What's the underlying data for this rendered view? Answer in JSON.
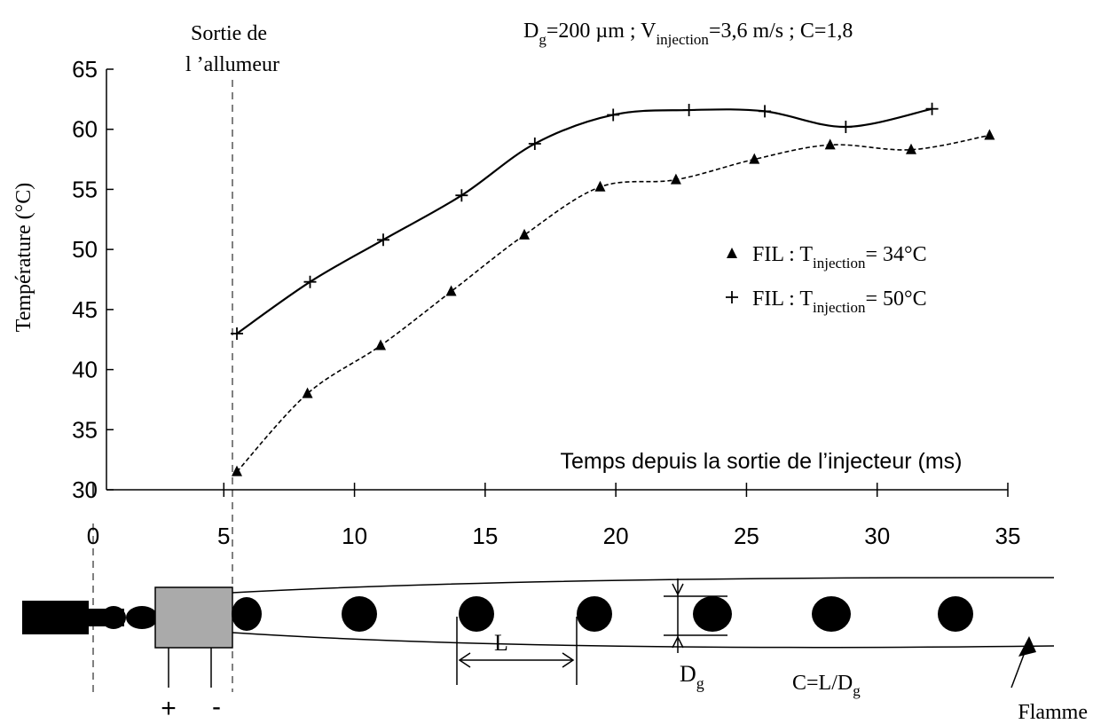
{
  "chart_data": {
    "type": "scatter-line",
    "title": [
      "D",
      "g",
      "=200 µm ; V",
      "injection",
      "=3,6 m/s ; C=1,8"
    ],
    "annotation": [
      "Sortie de",
      "l ’allumeur"
    ],
    "x_label": "Temps depuis la sortie de l’injecteur (ms)",
    "y_label": "Température (°C)",
    "xlim": [
      0,
      35
    ],
    "xticks": [
      0,
      5,
      10,
      15,
      20,
      25,
      30,
      35
    ],
    "ylim": [
      30,
      65
    ],
    "yticks": [
      30,
      35,
      40,
      45,
      50,
      55,
      60,
      65
    ],
    "series": [
      {
        "name": [
          "FIL : T",
          "injection",
          "= 34°C"
        ],
        "color": "#000000",
        "marker": "triangle",
        "line_style": "dashed",
        "x": [
          5.5,
          8.2,
          11,
          13.7,
          16.5,
          19.4,
          22.3,
          25.3,
          28.2,
          31.3,
          34.3
        ],
        "values": [
          31.5,
          38,
          42,
          46.5,
          51.2,
          55.2,
          55.8,
          57.5,
          58.7,
          58.3,
          59.5
        ]
      },
      {
        "name": [
          "FIL : T",
          "injection",
          "= 50°C"
        ],
        "color": "#000000",
        "marker": "plus",
        "line_style": "solid",
        "x": [
          5.5,
          8.3,
          11.1,
          14.1,
          16.9,
          19.9,
          22.8,
          25.7,
          28.8,
          32.1
        ],
        "values": [
          43,
          47.3,
          50.8,
          54.5,
          58.8,
          61.2,
          61.6,
          61.5,
          60.2,
          61.7
        ]
      }
    ]
  },
  "diagram": {
    "spacing": "L",
    "diameter": [
      "D",
      "g"
    ],
    "ratio": [
      "C=L/D",
      "g"
    ],
    "plus": "+",
    "minus": "-",
    "flame": "Flamme"
  }
}
